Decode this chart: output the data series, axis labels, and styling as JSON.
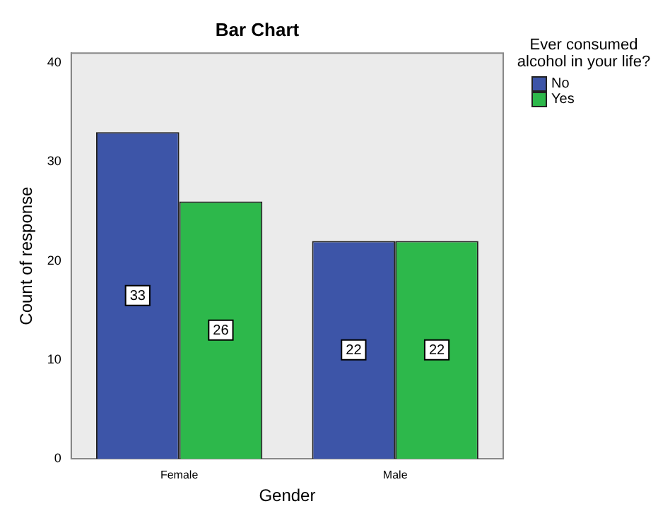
{
  "chart_data": {
    "type": "bar",
    "title": "Bar Chart",
    "xlabel": "Gender",
    "ylabel": "Count of response",
    "legend_title": "Ever consumed alcohol in your life?",
    "categories": [
      "Female",
      "Male"
    ],
    "series": [
      {
        "name": "No",
        "color": "#3d55a8",
        "values": [
          33,
          22
        ]
      },
      {
        "name": "Yes",
        "color": "#2db84b",
        "values": [
          26,
          22
        ]
      }
    ],
    "ylim": [
      0,
      41
    ],
    "yticks": [
      0,
      10,
      20,
      30,
      40
    ],
    "grid": false,
    "legend": "top right",
    "data_labels": true
  }
}
